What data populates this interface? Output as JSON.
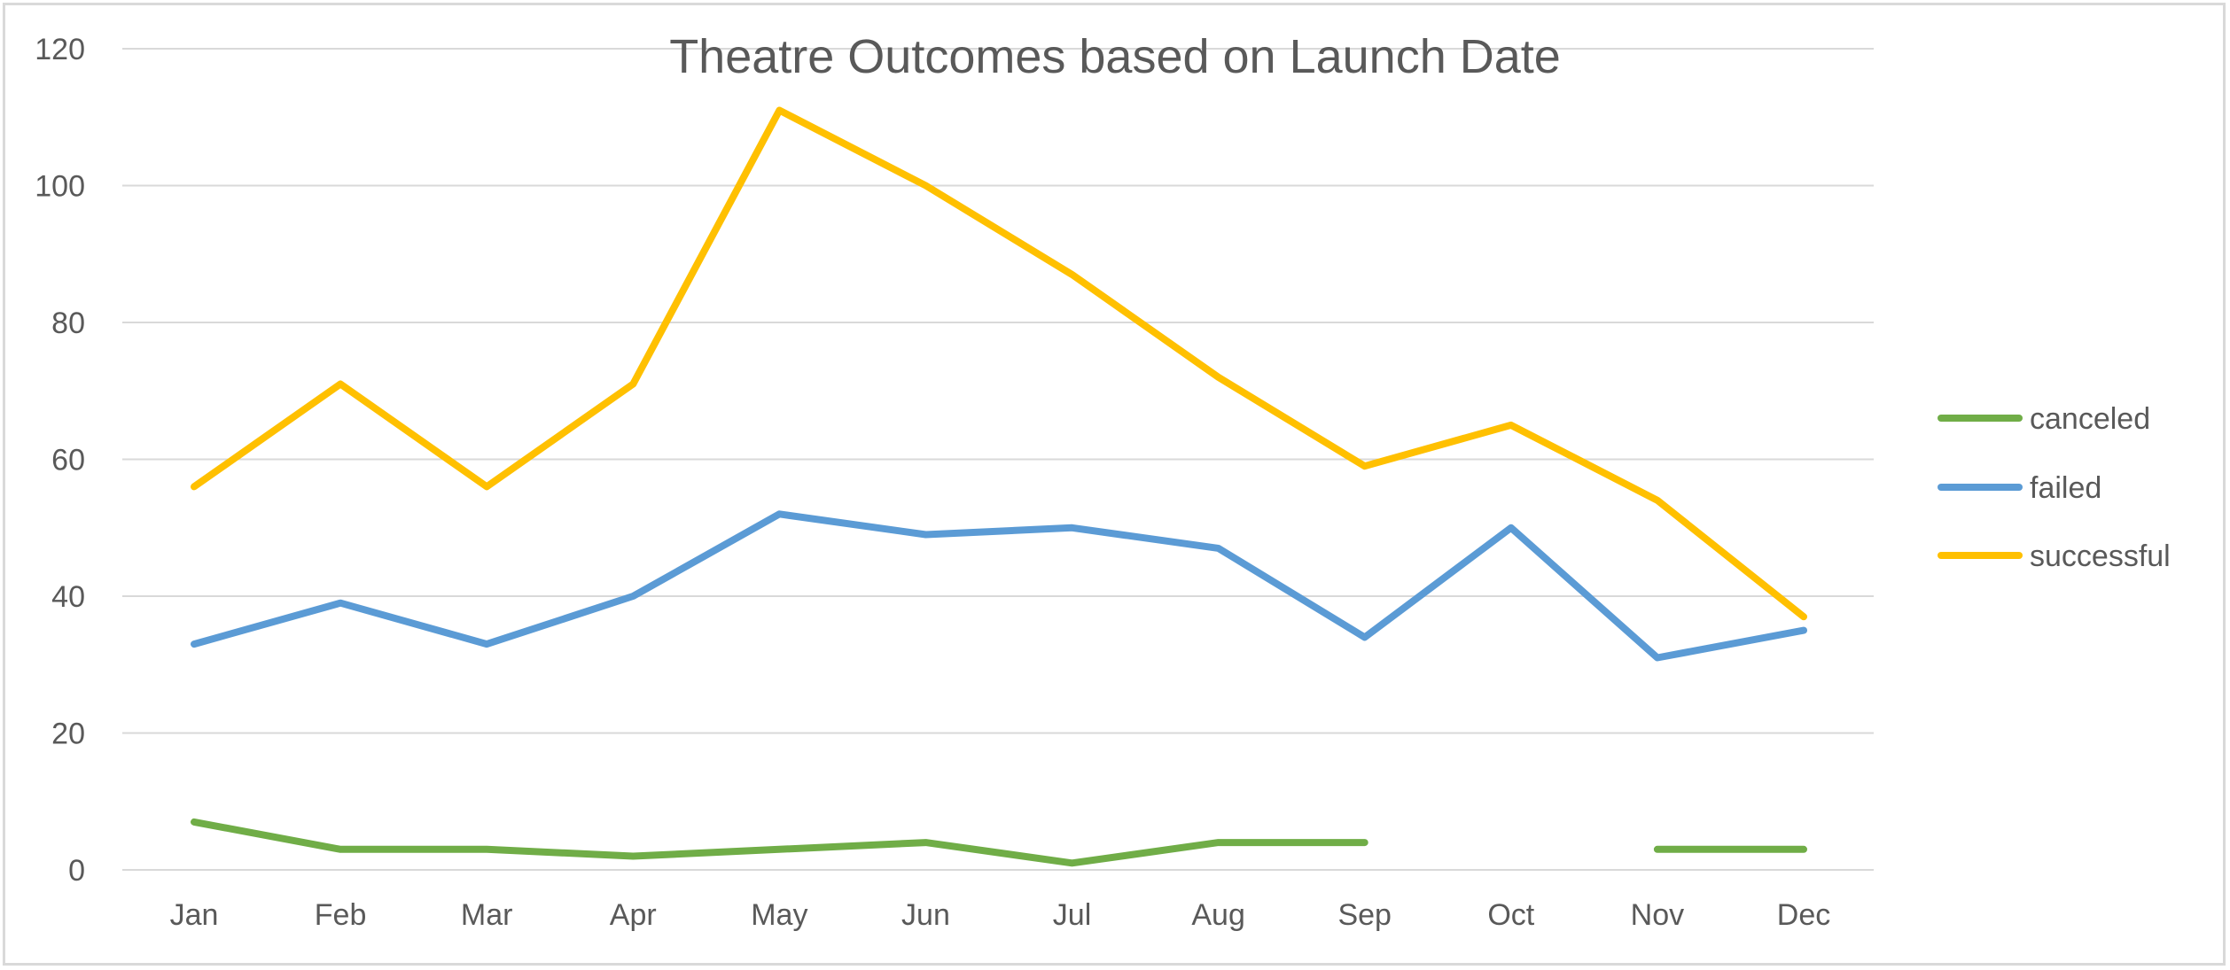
{
  "chart_data": {
    "type": "line",
    "title": "Theatre Outcomes based on Launch Date",
    "xlabel": "",
    "ylabel": "",
    "categories": [
      "Jan",
      "Feb",
      "Mar",
      "Apr",
      "May",
      "Jun",
      "Jul",
      "Aug",
      "Sep",
      "Oct",
      "Nov",
      "Dec"
    ],
    "ylim": [
      0,
      120
    ],
    "yticks": [
      0,
      20,
      40,
      60,
      80,
      100,
      120
    ],
    "grid": true,
    "legend_position": "right",
    "series": [
      {
        "name": "canceled",
        "color": "#70ad47",
        "values": [
          7,
          3,
          3,
          2,
          3,
          4,
          1,
          4,
          4,
          null,
          3,
          3
        ]
      },
      {
        "name": "failed",
        "color": "#5b9bd5",
        "values": [
          33,
          39,
          33,
          40,
          52,
          49,
          50,
          47,
          34,
          50,
          31,
          35
        ]
      },
      {
        "name": "successful",
        "color": "#ffc000",
        "values": [
          56,
          71,
          56,
          71,
          111,
          100,
          87,
          72,
          59,
          65,
          54,
          37
        ]
      }
    ]
  }
}
